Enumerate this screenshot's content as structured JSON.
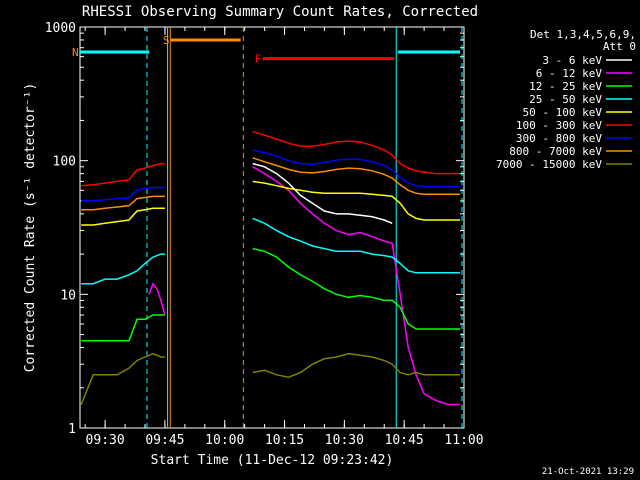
{
  "chart_data": {
    "type": "line",
    "title": "RHESSI Observing Summary Count Rates, Corrected",
    "ylabel": "Corrected Count Rate (s⁻¹ detector⁻¹)",
    "xlabel": "Start Time (11-Dec-12 09:23:42)",
    "yscale": "log",
    "ylim": [
      1,
      1000
    ],
    "xlim": [
      "09:23:42",
      "11:00:00"
    ],
    "y_ticks": [
      "1",
      "10",
      "100",
      "1000"
    ],
    "x_ticks": [
      {
        "label": "09:30",
        "t": "09:30"
      },
      {
        "label": "09:45",
        "t": "09:45"
      },
      {
        "label": "10:00",
        "t": "10:00"
      },
      {
        "label": "10:15",
        "t": "10:15"
      },
      {
        "label": "10:30",
        "t": "10:30"
      },
      {
        "label": "10:45",
        "t": "10:45"
      },
      {
        "label": "11:00",
        "t": "11:00"
      }
    ],
    "legend": {
      "placement": "top-right",
      "header_lines": [
        "Det 1,3,4,5,6,9,",
        "Att 0"
      ]
    },
    "flags": [
      {
        "label": "N",
        "color": "#ff8c00",
        "start": "09:23:42",
        "end": "09:41:00",
        "level": 650,
        "line_color": "#00ffff"
      },
      {
        "label": "S",
        "color": "#ff8c00",
        "start": "09:46:30",
        "end": "10:04:00",
        "level": 800,
        "line_color": "#ff8c00"
      },
      {
        "label": "F",
        "color": "#ff0000",
        "start": "10:09:30",
        "end": "10:42:30",
        "level": 580,
        "line_color": "#ff0000"
      },
      {
        "label": "",
        "color": "#00ffff",
        "start": "10:43:30",
        "end": "10:59:00",
        "level": 650,
        "line_color": "#00ffff"
      }
    ],
    "vlines": [
      {
        "t": "09:40:30",
        "color": "#00ffff",
        "style": "dashed"
      },
      {
        "t": "09:45:40",
        "color": "#00ffff",
        "style": "solid"
      },
      {
        "t": "09:46:20",
        "color": "#ff8c00",
        "style": "solid"
      },
      {
        "t": "10:04:40",
        "color": "#ff8c00",
        "style": "dashed"
      },
      {
        "t": "10:43:00",
        "color": "#00ffff",
        "style": "solid"
      },
      {
        "t": "10:59:30",
        "color": "#00ffff",
        "style": "dashed"
      }
    ],
    "series": [
      {
        "name": "3 - 6 keV",
        "color": "#ffffff",
        "t": [
          "10:07",
          "10:10",
          "10:13",
          "10:16",
          "10:19",
          "10:22",
          "10:25",
          "10:28",
          "10:31",
          "10:34",
          "10:37",
          "10:40",
          "10:42"
        ],
        "values": [
          95,
          90,
          80,
          68,
          55,
          48,
          42,
          40,
          40,
          39,
          38,
          36,
          34
        ]
      },
      {
        "name": "6 - 12 keV",
        "color": "#ff00ff",
        "t": [
          "09:41",
          "09:42",
          "09:43",
          "09:44",
          "09:45",
          "10:07",
          "10:10",
          "10:13",
          "10:16",
          "10:19",
          "10:22",
          "10:25",
          "10:28",
          "10:31",
          "10:34",
          "10:37",
          "10:40",
          "10:42",
          "10:44",
          "10:46",
          "10:48",
          "10:50",
          "10:53",
          "10:56",
          "10:59"
        ],
        "values": [
          10,
          12,
          11,
          9,
          7,
          90,
          80,
          70,
          60,
          48,
          40,
          34,
          30,
          28,
          29,
          27,
          25,
          24,
          10,
          4,
          2.5,
          1.8,
          1.6,
          1.5,
          1.5
        ]
      },
      {
        "name": "12 - 25 keV",
        "color": "#00ff00",
        "t": [
          "09:24",
          "09:27",
          "09:30",
          "09:33",
          "09:36",
          "09:38",
          "09:40",
          "09:42",
          "09:44",
          "09:45",
          "10:07",
          "10:10",
          "10:13",
          "10:16",
          "10:19",
          "10:22",
          "10:25",
          "10:28",
          "10:31",
          "10:34",
          "10:37",
          "10:40",
          "10:42",
          "10:44",
          "10:46",
          "10:48",
          "10:50",
          "10:53",
          "10:56",
          "10:59"
        ],
        "values": [
          4.5,
          4.5,
          4.5,
          4.5,
          4.5,
          6.5,
          6.5,
          7.0,
          7.0,
          7.0,
          22,
          21,
          19,
          16,
          14,
          12.5,
          11,
          10,
          9.5,
          9.8,
          9.5,
          9.0,
          9.0,
          8.0,
          6.0,
          5.5,
          5.5,
          5.5,
          5.5,
          5.5
        ]
      },
      {
        "name": "25 - 50 keV",
        "color": "#00ffff",
        "t": [
          "09:24",
          "09:27",
          "09:30",
          "09:33",
          "09:36",
          "09:38",
          "09:40",
          "09:42",
          "09:44",
          "09:45",
          "10:07",
          "10:10",
          "10:13",
          "10:16",
          "10:19",
          "10:22",
          "10:25",
          "10:28",
          "10:31",
          "10:34",
          "10:37",
          "10:40",
          "10:42",
          "10:44",
          "10:46",
          "10:48",
          "10:50",
          "10:53",
          "10:56",
          "10:59"
        ],
        "values": [
          12,
          12,
          13,
          13,
          14,
          15,
          17,
          19,
          20,
          20,
          37,
          34,
          30,
          27,
          25,
          23,
          22,
          21,
          21,
          21,
          20,
          19.5,
          19,
          17,
          15,
          14.5,
          14.5,
          14.5,
          14.5,
          14.5
        ]
      },
      {
        "name": "50 - 100 keV",
        "color": "#ffff00",
        "t": [
          "09:24",
          "09:27",
          "09:30",
          "09:33",
          "09:36",
          "09:38",
          "09:40",
          "09:42",
          "09:44",
          "09:45",
          "10:07",
          "10:10",
          "10:13",
          "10:16",
          "10:19",
          "10:22",
          "10:25",
          "10:28",
          "10:31",
          "10:34",
          "10:37",
          "10:40",
          "10:42",
          "10:44",
          "10:46",
          "10:48",
          "10:50",
          "10:53",
          "10:56",
          "10:59"
        ],
        "values": [
          33,
          33,
          34,
          35,
          36,
          42,
          43,
          44,
          44,
          44,
          70,
          68,
          65,
          62,
          60,
          58,
          57,
          57,
          57,
          57,
          56,
          55,
          54,
          48,
          40,
          37,
          36,
          36,
          36,
          36
        ]
      },
      {
        "name": "100 - 300 keV",
        "color": "#ff0000",
        "t": [
          "09:24",
          "09:27",
          "09:30",
          "09:33",
          "09:36",
          "09:38",
          "09:40",
          "09:42",
          "09:44",
          "09:45",
          "10:07",
          "10:10",
          "10:13",
          "10:16",
          "10:19",
          "10:22",
          "10:25",
          "10:28",
          "10:31",
          "10:34",
          "10:37",
          "10:40",
          "10:42",
          "10:44",
          "10:46",
          "10:48",
          "10:50",
          "10:53",
          "10:56",
          "10:59"
        ],
        "values": [
          65,
          66,
          68,
          70,
          72,
          85,
          88,
          92,
          95,
          95,
          165,
          155,
          145,
          135,
          128,
          128,
          132,
          138,
          140,
          138,
          130,
          120,
          110,
          95,
          88,
          84,
          82,
          80,
          80,
          80
        ]
      },
      {
        "name": "300 - 800 keV",
        "color": "#0000ff",
        "t": [
          "09:24",
          "09:27",
          "09:30",
          "09:33",
          "09:36",
          "09:38",
          "09:40",
          "09:42",
          "09:44",
          "09:45",
          "10:07",
          "10:10",
          "10:13",
          "10:16",
          "10:19",
          "10:22",
          "10:25",
          "10:28",
          "10:31",
          "10:34",
          "10:37",
          "10:40",
          "10:42",
          "10:44",
          "10:46",
          "10:48",
          "10:50",
          "10:53",
          "10:56",
          "10:59"
        ],
        "values": [
          50,
          50,
          51,
          52,
          53,
          60,
          62,
          63,
          63,
          63,
          120,
          115,
          108,
          100,
          95,
          94,
          97,
          101,
          103,
          102,
          98,
          92,
          85,
          75,
          68,
          65,
          64,
          64,
          64,
          64
        ]
      },
      {
        "name": "800 - 7000 keV",
        "color": "#ff8c00",
        "t": [
          "09:24",
          "09:27",
          "09:30",
          "09:33",
          "09:36",
          "09:38",
          "09:40",
          "09:42",
          "09:44",
          "09:45",
          "10:07",
          "10:10",
          "10:13",
          "10:16",
          "10:19",
          "10:22",
          "10:25",
          "10:28",
          "10:31",
          "10:34",
          "10:37",
          "10:40",
          "10:42",
          "10:44",
          "10:46",
          "10:48",
          "10:50",
          "10:53",
          "10:56",
          "10:59"
        ],
        "values": [
          43,
          43,
          44,
          45,
          46,
          52,
          53,
          54,
          54,
          54,
          105,
          98,
          92,
          86,
          82,
          81,
          83,
          86,
          88,
          87,
          84,
          79,
          74,
          66,
          60,
          57,
          56,
          56,
          56,
          56
        ]
      },
      {
        "name": "7000 - 15000 keV",
        "color": "#808000",
        "t": [
          "09:24",
          "09:27",
          "09:30",
          "09:33",
          "09:36",
          "09:38",
          "09:40",
          "09:42",
          "09:44",
          "09:45",
          "10:07",
          "10:10",
          "10:13",
          "10:16",
          "10:19",
          "10:22",
          "10:25",
          "10:28",
          "10:31",
          "10:34",
          "10:37",
          "10:40",
          "10:42",
          "10:44",
          "10:46",
          "10:48",
          "10:50",
          "10:53",
          "10:56",
          "10:59"
        ],
        "values": [
          1.5,
          2.5,
          2.5,
          2.5,
          2.8,
          3.2,
          3.4,
          3.6,
          3.4,
          3.4,
          2.6,
          2.7,
          2.5,
          2.4,
          2.6,
          3.0,
          3.3,
          3.4,
          3.6,
          3.5,
          3.4,
          3.2,
          3.0,
          2.6,
          2.5,
          2.6,
          2.5,
          2.5,
          2.5,
          2.5
        ]
      }
    ]
  },
  "footer": {
    "date_stamp": "21-Oct-2021 13:29"
  }
}
